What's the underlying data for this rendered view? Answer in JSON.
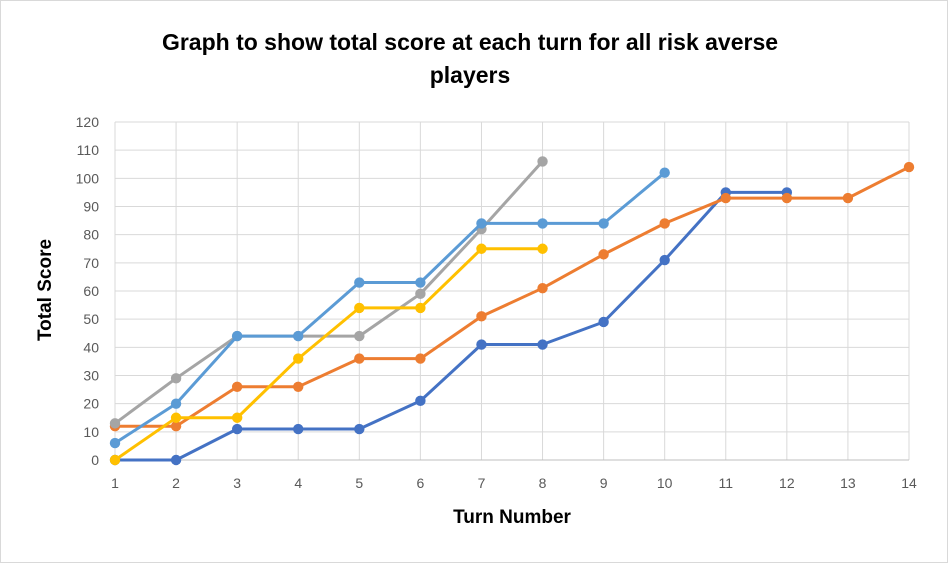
{
  "chart_data": {
    "type": "line",
    "title": "Graph to show total score at each turn for all risk averse players",
    "xlabel": "Turn Number",
    "ylabel": "Total Score",
    "x": [
      1,
      2,
      3,
      4,
      5,
      6,
      7,
      8,
      9,
      10,
      11,
      12,
      13,
      14
    ],
    "xlim": [
      1,
      14
    ],
    "ylim": [
      0,
      120
    ],
    "yticks": [
      0,
      10,
      20,
      30,
      40,
      50,
      60,
      70,
      80,
      90,
      100,
      110,
      120
    ],
    "grid": true,
    "legend": "none",
    "series": [
      {
        "color": "#4472c4",
        "x": [
          1,
          2,
          3,
          4,
          5,
          6,
          7,
          8,
          9,
          10,
          11,
          12
        ],
        "values": [
          0,
          0,
          11,
          11,
          11,
          21,
          41,
          41,
          49,
          71,
          95,
          95
        ]
      },
      {
        "color": "#ed7d31",
        "x": [
          1,
          2,
          3,
          4,
          5,
          6,
          7,
          8,
          9,
          10,
          11,
          12,
          13,
          14
        ],
        "values": [
          12,
          12,
          26,
          26,
          36,
          36,
          51,
          61,
          73,
          84,
          93,
          93,
          93,
          104
        ]
      },
      {
        "color": "#a5a5a5",
        "x": [
          1,
          2,
          3,
          4,
          5,
          6,
          7,
          8
        ],
        "values": [
          13,
          29,
          44,
          44,
          44,
          59,
          82,
          106
        ]
      },
      {
        "color": "#5b9bd5",
        "x": [
          1,
          2,
          3,
          4,
          5,
          6,
          7,
          8,
          9,
          10
        ],
        "values": [
          6,
          20,
          44,
          44,
          63,
          63,
          84,
          84,
          84,
          102
        ]
      },
      {
        "color": "#ffc000",
        "x": [
          1,
          2,
          3,
          4,
          5,
          6,
          7,
          8
        ],
        "values": [
          0,
          15,
          15,
          36,
          54,
          54,
          75,
          75
        ]
      }
    ]
  }
}
